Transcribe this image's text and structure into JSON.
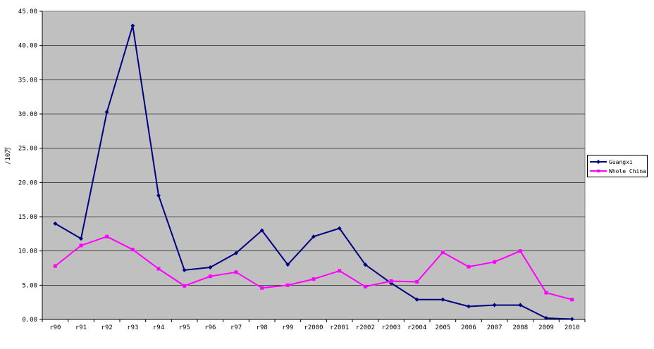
{
  "chart_data": {
    "type": "line",
    "title": "",
    "xlabel": "",
    "ylabel": "/10万",
    "ylim": [
      0,
      45
    ],
    "yticks": [
      "0.00",
      "5.00",
      "10.00",
      "15.00",
      "20.00",
      "25.00",
      "30.00",
      "35.00",
      "40.00",
      "45.00"
    ],
    "categories": [
      "r90",
      "r91",
      "r92",
      "r93",
      "r94",
      "r95",
      "r96",
      "r97",
      "r98",
      "r99",
      "r2000",
      "r2001",
      "r2002",
      "r2003",
      "r2004",
      "2005",
      "2006",
      "2007",
      "2008",
      "2009",
      "2010"
    ],
    "grid": true,
    "legend_position": "right",
    "series": [
      {
        "name": "Guangxi",
        "color": "#000080",
        "marker": "diamond",
        "values": [
          14.0,
          11.8,
          30.3,
          42.9,
          18.1,
          7.2,
          7.6,
          9.7,
          13.0,
          8.0,
          12.1,
          13.3,
          8.0,
          5.3,
          2.9,
          2.9,
          1.9,
          2.1,
          2.1,
          0.2,
          0.05
        ]
      },
      {
        "name": "Whole China",
        "color": "#ff00ff",
        "marker": "square",
        "values": [
          7.8,
          10.8,
          12.1,
          10.2,
          7.4,
          4.9,
          6.3,
          6.9,
          4.6,
          5.0,
          5.9,
          7.1,
          4.8,
          5.6,
          5.5,
          9.8,
          7.7,
          8.4,
          10.0,
          3.9,
          2.9
        ]
      }
    ]
  }
}
